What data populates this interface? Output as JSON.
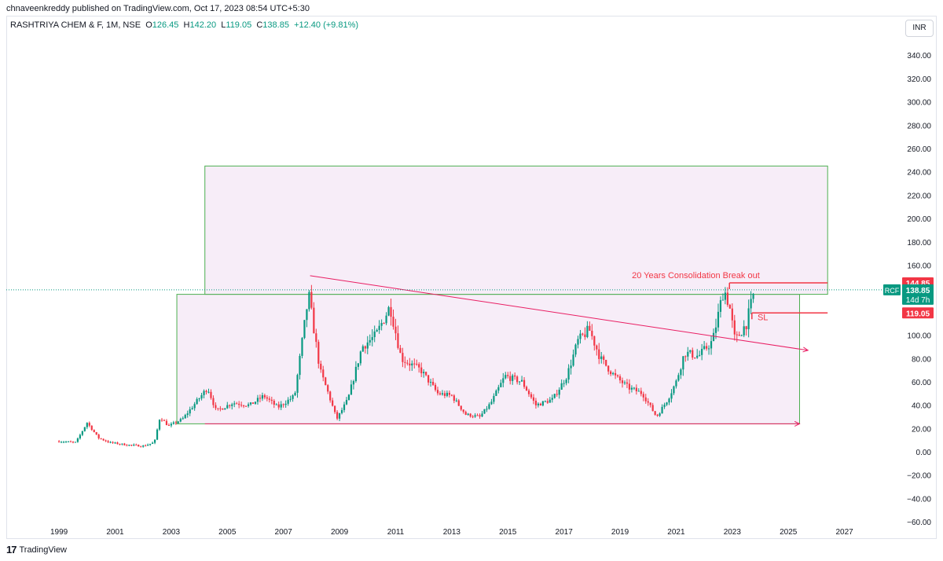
{
  "header": {
    "published": "chnaveenkreddy published on TradingView.com, Oct 17, 2023 08:54 UTC+5:30"
  },
  "legend": {
    "symbol": "RASHTRIYA CHEM & F, 1M, NSE",
    "open_label": "O",
    "open": "126.45",
    "high_label": "H",
    "high": "142.20",
    "low_label": "L",
    "low": "119.05",
    "close_label": "C",
    "close": "138.85",
    "change": "+12.40 (+9.81%)"
  },
  "currency": "INR",
  "footer": {
    "brand": "TradingView",
    "logo": "tradingview-logo-icon"
  },
  "colors": {
    "up": "#089981",
    "down": "#f23645",
    "box_fill": "#f3e5f5",
    "box_border": "#4caf50",
    "trend": "#e91e63"
  },
  "chart_data": {
    "type": "candlestick",
    "symbol": "RCF",
    "interval": "1M",
    "y_ticks": [
      "340.00",
      "320.00",
      "300.00",
      "280.00",
      "260.00",
      "240.00",
      "220.00",
      "200.00",
      "180.00",
      "160.00",
      "140.00",
      "120.00",
      "100.00",
      "80.00",
      "60.00",
      "40.00",
      "20.00",
      "0.00",
      "−20.00",
      "−40.00",
      "−60.00"
    ],
    "x_ticks": [
      "1999",
      "2001",
      "2003",
      "2005",
      "2007",
      "2009",
      "2011",
      "2013",
      "2015",
      "2017",
      "2019",
      "2021",
      "2023",
      "2025",
      "2027"
    ],
    "ylim": [
      -68,
      357
    ],
    "xlim": [
      1997.12,
      2029.0
    ],
    "grid": false,
    "price_labels": [
      {
        "value": 144.85,
        "text": "144.85",
        "color": "#f23645"
      },
      {
        "value": 119.05,
        "text": "119.05",
        "color": "#f23645"
      }
    ],
    "current": {
      "value": 138.85,
      "tag": "RCF",
      "text": "138.85",
      "countdown": "14d 7h",
      "color": "#089981"
    },
    "annotations": [
      {
        "text": "20 Years Consolidation Break out",
        "x": 2021.7,
        "y": 149
      },
      {
        "text": "SL",
        "x": 2023.9,
        "y": 113
      }
    ],
    "boxes": [
      {
        "x": [
          2003.2,
          2025.4
        ],
        "y": [
          24,
          135
        ]
      },
      {
        "x": [
          2004.2,
          2026.4
        ],
        "y": [
          135,
          245
        ]
      }
    ],
    "lines": [
      {
        "x1": 2007.95,
        "y1": 151,
        "x2": 2025.7,
        "y2": 87
      },
      {
        "x1": 2004.2,
        "y1": 24,
        "x2": 2025.4,
        "y2": 24
      }
    ],
    "hlines": [
      {
        "x1": 2022.9,
        "x2": 2026.4,
        "y": 144.85
      },
      {
        "x1": 2023.7,
        "x2": 2026.4,
        "y": 119.05
      }
    ],
    "keypoints": [
      [
        1999.0,
        9
      ],
      [
        1999.6,
        8
      ],
      [
        2000.0,
        25
      ],
      [
        2000.4,
        12
      ],
      [
        2000.8,
        8
      ],
      [
        2001.4,
        6
      ],
      [
        2002.0,
        5
      ],
      [
        2002.4,
        8
      ],
      [
        2002.6,
        30
      ],
      [
        2002.9,
        22
      ],
      [
        2003.4,
        28
      ],
      [
        2003.8,
        40
      ],
      [
        2004.3,
        55
      ],
      [
        2004.6,
        35
      ],
      [
        2005.2,
        42
      ],
      [
        2005.8,
        40
      ],
      [
        2006.3,
        48
      ],
      [
        2006.8,
        38
      ],
      [
        2007.4,
        48
      ],
      [
        2007.9,
        135
      ],
      [
        2008.3,
        70
      ],
      [
        2008.6,
        50
      ],
      [
        2008.9,
        28
      ],
      [
        2009.3,
        45
      ],
      [
        2009.8,
        90
      ],
      [
        2010.3,
        100
      ],
      [
        2010.8,
        125
      ],
      [
        2011.2,
        80
      ],
      [
        2011.9,
        70
      ],
      [
        2012.5,
        50
      ],
      [
        2013.0,
        48
      ],
      [
        2013.5,
        32
      ],
      [
        2014.0,
        30
      ],
      [
        2014.4,
        42
      ],
      [
        2014.9,
        65
      ],
      [
        2015.5,
        60
      ],
      [
        2016.0,
        40
      ],
      [
        2016.6,
        45
      ],
      [
        2017.1,
        65
      ],
      [
        2017.5,
        95
      ],
      [
        2017.9,
        105
      ],
      [
        2018.3,
        80
      ],
      [
        2018.8,
        65
      ],
      [
        2019.3,
        55
      ],
      [
        2019.8,
        50
      ],
      [
        2020.3,
        30
      ],
      [
        2020.7,
        45
      ],
      [
        2021.0,
        60
      ],
      [
        2021.3,
        85
      ],
      [
        2021.8,
        82
      ],
      [
        2022.3,
        95
      ],
      [
        2022.7,
        140
      ],
      [
        2022.9,
        125
      ],
      [
        2023.1,
        95
      ],
      [
        2023.5,
        110
      ],
      [
        2023.8,
        138.85
      ]
    ]
  }
}
